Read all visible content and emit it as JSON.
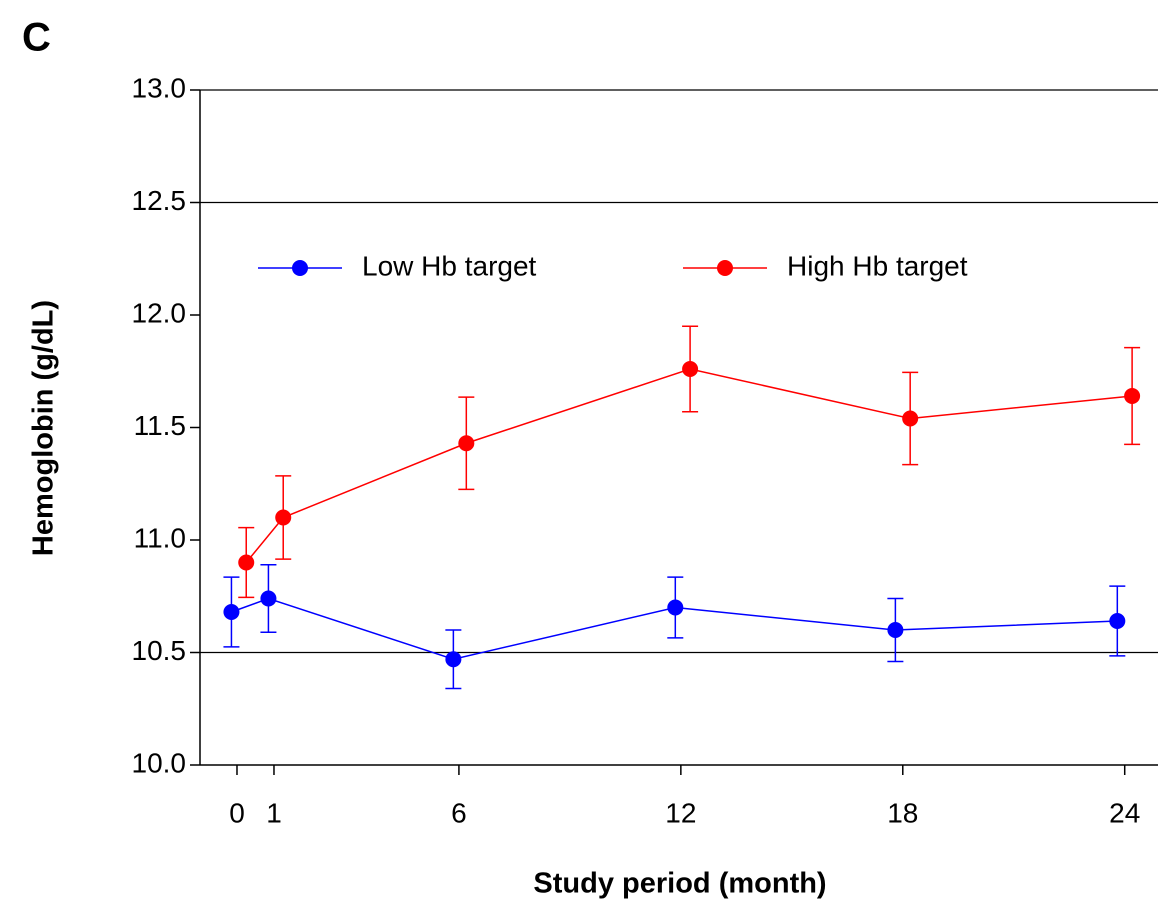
{
  "chart_data": {
    "type": "line",
    "panel_label": "C",
    "x_label": "Study period (month)",
    "y_label": "Hemoglobin (g/dL)",
    "xlim": [
      -1,
      24.9
    ],
    "ylim": [
      10.0,
      13.0
    ],
    "xticks": [
      0,
      1,
      6,
      12,
      18,
      24
    ],
    "yticks": [
      {
        "value": 10.0,
        "label": "10.0"
      },
      {
        "value": 10.5,
        "label": "10.5"
      },
      {
        "value": 11.0,
        "label": "11.0"
      },
      {
        "value": 11.5,
        "label": "11.5"
      },
      {
        "value": 12.0,
        "label": "12.0"
      },
      {
        "value": 12.5,
        "label": "12.5"
      },
      {
        "value": 13.0,
        "label": "13.0"
      }
    ],
    "reference_lines": [
      10.5,
      12.5,
      13.0
    ],
    "series": [
      {
        "name": "Low Hb target",
        "color": "#0000ff",
        "x": [
          -0.15,
          0.85,
          5.85,
          11.85,
          17.8,
          23.8
        ],
        "values": [
          10.68,
          10.74,
          10.47,
          10.7,
          10.6,
          10.64
        ],
        "errors": [
          0.155,
          0.15,
          0.13,
          0.135,
          0.14,
          0.155
        ]
      },
      {
        "name": "High Hb target",
        "color": "#ff0000",
        "x": [
          0.25,
          1.25,
          6.2,
          12.25,
          18.2,
          24.2
        ],
        "values": [
          10.9,
          11.1,
          11.43,
          11.76,
          11.54,
          11.64
        ],
        "errors": [
          0.155,
          0.185,
          0.205,
          0.19,
          0.205,
          0.215
        ]
      }
    ]
  }
}
